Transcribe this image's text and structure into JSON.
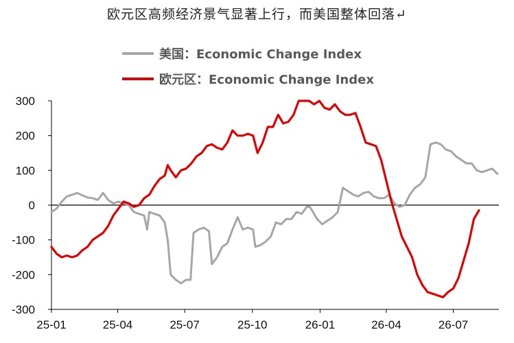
{
  "chart_data": {
    "type": "line",
    "title": "欧元区高频经济景气显著上行，而美国整体回落↵",
    "xlabel": "",
    "ylabel": "",
    "ylim": [
      -300,
      300
    ],
    "y_ticks": [
      "300",
      "200",
      "100",
      "0",
      "-100",
      "-200",
      "-300"
    ],
    "x_tick_labels": [
      "25-01",
      "25-04",
      "25-07",
      "25-10",
      "26-01",
      "26-04",
      "26-07"
    ],
    "x_range": [
      "2025-01-01",
      "2026-09-01"
    ],
    "grid": false,
    "legend_position": "top",
    "series": [
      {
        "name": "美国：Economic Change Index",
        "color": "#a6a6a6",
        "points": [
          [
            "2025-01-01",
            -20
          ],
          [
            "2025-01-08",
            -10
          ],
          [
            "2025-01-15",
            10
          ],
          [
            "2025-01-22",
            25
          ],
          [
            "2025-01-29",
            30
          ],
          [
            "2025-02-05",
            35
          ],
          [
            "2025-02-12",
            28
          ],
          [
            "2025-02-19",
            22
          ],
          [
            "2025-02-26",
            20
          ],
          [
            "2025-03-05",
            15
          ],
          [
            "2025-03-12",
            35
          ],
          [
            "2025-03-19",
            15
          ],
          [
            "2025-03-26",
            5
          ],
          [
            "2025-04-02",
            10
          ],
          [
            "2025-04-09",
            5
          ],
          [
            "2025-04-16",
            0
          ],
          [
            "2025-04-23",
            -20
          ],
          [
            "2025-04-30",
            -25
          ],
          [
            "2025-05-07",
            -30
          ],
          [
            "2025-05-11",
            -70
          ],
          [
            "2025-05-14",
            -20
          ],
          [
            "2025-05-21",
            -25
          ],
          [
            "2025-05-28",
            -30
          ],
          [
            "2025-06-04",
            -50
          ],
          [
            "2025-06-08",
            -100
          ],
          [
            "2025-06-12",
            -200
          ],
          [
            "2025-06-19",
            -215
          ],
          [
            "2025-06-26",
            -225
          ],
          [
            "2025-07-03",
            -215
          ],
          [
            "2025-07-09",
            -215
          ],
          [
            "2025-07-13",
            -80
          ],
          [
            "2025-07-20",
            -70
          ],
          [
            "2025-07-27",
            -65
          ],
          [
            "2025-08-03",
            -75
          ],
          [
            "2025-08-07",
            -170
          ],
          [
            "2025-08-14",
            -150
          ],
          [
            "2025-08-21",
            -120
          ],
          [
            "2025-08-28",
            -110
          ],
          [
            "2025-09-04",
            -70
          ],
          [
            "2025-09-11",
            -35
          ],
          [
            "2025-09-18",
            -70
          ],
          [
            "2025-09-25",
            -65
          ],
          [
            "2025-10-02",
            -70
          ],
          [
            "2025-10-05",
            -120
          ],
          [
            "2025-10-12",
            -115
          ],
          [
            "2025-10-19",
            -105
          ],
          [
            "2025-10-26",
            -90
          ],
          [
            "2025-11-02",
            -50
          ],
          [
            "2025-11-09",
            -55
          ],
          [
            "2025-11-16",
            -40
          ],
          [
            "2025-11-23",
            -40
          ],
          [
            "2025-11-30",
            -20
          ],
          [
            "2025-12-07",
            -25
          ],
          [
            "2025-12-14",
            -5
          ],
          [
            "2025-12-18",
            -5
          ],
          [
            "2025-12-21",
            -15
          ],
          [
            "2025-12-28",
            -40
          ],
          [
            "2026-01-04",
            -55
          ],
          [
            "2026-01-11",
            -45
          ],
          [
            "2026-01-18",
            -35
          ],
          [
            "2026-01-25",
            -20
          ],
          [
            "2026-02-01",
            50
          ],
          [
            "2026-02-08",
            40
          ],
          [
            "2026-02-15",
            30
          ],
          [
            "2026-02-22",
            25
          ],
          [
            "2026-03-01",
            35
          ],
          [
            "2026-03-08",
            38
          ],
          [
            "2026-03-15",
            25
          ],
          [
            "2026-03-22",
            20
          ],
          [
            "2026-03-29",
            20
          ],
          [
            "2026-04-05",
            30
          ],
          [
            "2026-04-12",
            5
          ],
          [
            "2026-04-19",
            -5
          ],
          [
            "2026-04-26",
            0
          ],
          [
            "2026-05-03",
            30
          ],
          [
            "2026-05-10",
            50
          ],
          [
            "2026-05-17",
            60
          ],
          [
            "2026-05-24",
            80
          ],
          [
            "2026-05-31",
            175
          ],
          [
            "2026-06-07",
            180
          ],
          [
            "2026-06-14",
            175
          ],
          [
            "2026-06-21",
            160
          ],
          [
            "2026-06-28",
            155
          ],
          [
            "2026-07-05",
            140
          ],
          [
            "2026-07-12",
            130
          ],
          [
            "2026-07-19",
            120
          ],
          [
            "2026-07-26",
            120
          ],
          [
            "2026-08-02",
            100
          ],
          [
            "2026-08-09",
            95
          ],
          [
            "2026-08-16",
            100
          ],
          [
            "2026-08-23",
            105
          ],
          [
            "2026-08-30",
            90
          ]
        ]
      },
      {
        "name": "欧元区：Economic Change Index",
        "color": "#e00000",
        "points": [
          [
            "2025-01-01",
            -120
          ],
          [
            "2025-01-08",
            -140
          ],
          [
            "2025-01-15",
            -150
          ],
          [
            "2025-01-22",
            -145
          ],
          [
            "2025-01-29",
            -150
          ],
          [
            "2025-02-05",
            -145
          ],
          [
            "2025-02-12",
            -130
          ],
          [
            "2025-02-19",
            -120
          ],
          [
            "2025-02-26",
            -100
          ],
          [
            "2025-03-05",
            -90
          ],
          [
            "2025-03-12",
            -80
          ],
          [
            "2025-03-19",
            -60
          ],
          [
            "2025-03-26",
            -30
          ],
          [
            "2025-04-02",
            -10
          ],
          [
            "2025-04-09",
            10
          ],
          [
            "2025-04-16",
            5
          ],
          [
            "2025-04-23",
            -5
          ],
          [
            "2025-04-30",
            0
          ],
          [
            "2025-05-07",
            20
          ],
          [
            "2025-05-14",
            30
          ],
          [
            "2025-05-21",
            55
          ],
          [
            "2025-05-28",
            75
          ],
          [
            "2025-06-04",
            85
          ],
          [
            "2025-06-08",
            115
          ],
          [
            "2025-06-12",
            100
          ],
          [
            "2025-06-19",
            80
          ],
          [
            "2025-06-26",
            100
          ],
          [
            "2025-07-03",
            105
          ],
          [
            "2025-07-10",
            120
          ],
          [
            "2025-07-17",
            140
          ],
          [
            "2025-07-24",
            150
          ],
          [
            "2025-07-31",
            170
          ],
          [
            "2025-08-07",
            175
          ],
          [
            "2025-08-14",
            165
          ],
          [
            "2025-08-21",
            160
          ],
          [
            "2025-08-28",
            180
          ],
          [
            "2025-09-04",
            215
          ],
          [
            "2025-09-11",
            200
          ],
          [
            "2025-09-18",
            200
          ],
          [
            "2025-09-25",
            205
          ],
          [
            "2025-10-02",
            200
          ],
          [
            "2025-10-05",
            175
          ],
          [
            "2025-10-08",
            150
          ],
          [
            "2025-10-15",
            180
          ],
          [
            "2025-10-22",
            225
          ],
          [
            "2025-10-29",
            225
          ],
          [
            "2025-11-05",
            260
          ],
          [
            "2025-11-12",
            235
          ],
          [
            "2025-11-19",
            240
          ],
          [
            "2025-11-26",
            260
          ],
          [
            "2025-12-03",
            300
          ],
          [
            "2025-12-10",
            300
          ],
          [
            "2025-12-17",
            300
          ],
          [
            "2025-12-24",
            290
          ],
          [
            "2025-12-31",
            300
          ],
          [
            "2026-01-07",
            280
          ],
          [
            "2026-01-14",
            275
          ],
          [
            "2026-01-21",
            290
          ],
          [
            "2026-01-28",
            270
          ],
          [
            "2026-02-04",
            260
          ],
          [
            "2026-02-11",
            260
          ],
          [
            "2026-02-18",
            265
          ],
          [
            "2026-02-25",
            225
          ],
          [
            "2026-03-04",
            180
          ],
          [
            "2026-03-11",
            175
          ],
          [
            "2026-03-18",
            170
          ],
          [
            "2026-03-25",
            130
          ],
          [
            "2026-04-01",
            70
          ],
          [
            "2026-04-08",
            10
          ],
          [
            "2026-04-15",
            -40
          ],
          [
            "2026-04-22",
            -90
          ],
          [
            "2026-04-29",
            -120
          ],
          [
            "2026-05-06",
            -150
          ],
          [
            "2026-05-13",
            -200
          ],
          [
            "2026-05-20",
            -230
          ],
          [
            "2026-05-27",
            -250
          ],
          [
            "2026-06-03",
            -255
          ],
          [
            "2026-06-10",
            -260
          ],
          [
            "2026-06-17",
            -265
          ],
          [
            "2026-06-24",
            -250
          ],
          [
            "2026-07-01",
            -240
          ],
          [
            "2026-07-08",
            -210
          ],
          [
            "2026-07-15",
            -160
          ],
          [
            "2026-07-22",
            -110
          ],
          [
            "2026-07-29",
            -40
          ],
          [
            "2026-08-05",
            -15
          ]
        ]
      }
    ]
  }
}
